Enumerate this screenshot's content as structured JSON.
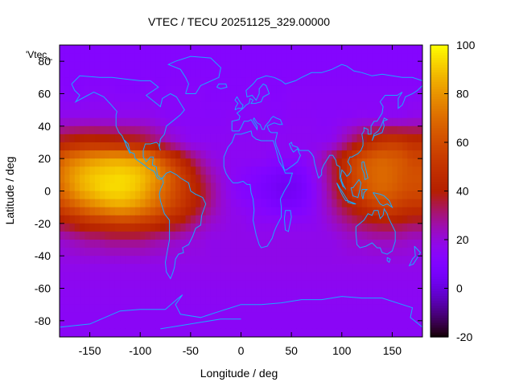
{
  "chart_data": {
    "type": "heatmap",
    "title": "VTEC / TECU 20251125_329.00000",
    "xlabel": "Longitude / deg",
    "ylabel": "Latitude / deg",
    "key_label": "'Vtec_",
    "xlim": [
      -180,
      180
    ],
    "ylim": [
      -90,
      90
    ],
    "x_ticks": [
      -150,
      -100,
      -50,
      0,
      50,
      100,
      150
    ],
    "y_ticks": [
      -80,
      -60,
      -40,
      -20,
      0,
      20,
      40,
      60,
      80
    ],
    "colorbar": {
      "range": [
        -20,
        100
      ],
      "ticks": [
        -20,
        0,
        20,
        40,
        60,
        80,
        100
      ],
      "palette": "gnuplot-pm3d"
    },
    "grid": false,
    "grid_step_deg": 10,
    "field_summary": "Gridded VTEC map: peak ~85-95 TECU over the eastern Pacific near the equator (lon -180 to -20), secondary ~60-70 TECU over the western Pacific / Australia sector (lon 130 to 180), background ~10-20 TECU, minimum ~0-5 TECU over India / Arabian Sea.",
    "values": [
      [
        12,
        12,
        12,
        12,
        12,
        12,
        12,
        12,
        12,
        12,
        12,
        12,
        12,
        12,
        12,
        12,
        12,
        12,
        12,
        12,
        12,
        12,
        12,
        12,
        12,
        12,
        12,
        12,
        12,
        12,
        12,
        12,
        12,
        12,
        12,
        12
      ],
      [
        14,
        13,
        13,
        14,
        14,
        14,
        13,
        13,
        13,
        14,
        13,
        14,
        14,
        14,
        14,
        13,
        13,
        13,
        13,
        14,
        14,
        13,
        13,
        14,
        14,
        14,
        14,
        14,
        14,
        14,
        14,
        14,
        14,
        14,
        14,
        14
      ],
      [
        18,
        18,
        18,
        18,
        18,
        18,
        18,
        18,
        18,
        18,
        16,
        14,
        14,
        14,
        14,
        14,
        14,
        15,
        14,
        14,
        15,
        14,
        14,
        15,
        15,
        15,
        14,
        14,
        15,
        15,
        16,
        15,
        16,
        16,
        16,
        18
      ],
      [
        40,
        43,
        45,
        46,
        45,
        44,
        43,
        42,
        40,
        35,
        30,
        24,
        20,
        16,
        16,
        16,
        16,
        16,
        16,
        16,
        16,
        16,
        16,
        16,
        16,
        16,
        16,
        17,
        24,
        32,
        40,
        48,
        52,
        54,
        52,
        48
      ],
      [
        65,
        72,
        76,
        80,
        82,
        84,
        84,
        82,
        80,
        74,
        64,
        54,
        44,
        34,
        26,
        20,
        18,
        16,
        16,
        16,
        16,
        14,
        14,
        14,
        14,
        18,
        24,
        34,
        44,
        54,
        62,
        66,
        68,
        66,
        64,
        58
      ],
      [
        72,
        80,
        86,
        90,
        92,
        93,
        94,
        93,
        90,
        84,
        76,
        66,
        56,
        46,
        34,
        26,
        20,
        16,
        14,
        12,
        10,
        8,
        6,
        6,
        8,
        14,
        22,
        32,
        44,
        56,
        64,
        68,
        70,
        68,
        64,
        62
      ],
      [
        68,
        76,
        84,
        88,
        92,
        94,
        94,
        92,
        88,
        80,
        72,
        64,
        56,
        48,
        40,
        30,
        22,
        16,
        12,
        10,
        8,
        6,
        4,
        4,
        6,
        12,
        20,
        30,
        42,
        52,
        60,
        66,
        68,
        66,
        62,
        60
      ],
      [
        56,
        62,
        68,
        74,
        78,
        82,
        84,
        82,
        78,
        72,
        66,
        58,
        52,
        44,
        36,
        28,
        22,
        18,
        16,
        14,
        12,
        10,
        8,
        8,
        10,
        14,
        20,
        26,
        34,
        40,
        46,
        52,
        56,
        56,
        52,
        50
      ],
      [
        36,
        40,
        44,
        48,
        50,
        52,
        54,
        54,
        52,
        50,
        46,
        42,
        38,
        32,
        26,
        22,
        20,
        18,
        18,
        16,
        16,
        16,
        16,
        16,
        16,
        16,
        18,
        22,
        26,
        30,
        34,
        36,
        38,
        38,
        36,
        34
      ],
      [
        22,
        24,
        26,
        28,
        28,
        30,
        30,
        30,
        30,
        28,
        26,
        24,
        22,
        20,
        20,
        18,
        18,
        18,
        18,
        18,
        18,
        18,
        18,
        18,
        18,
        18,
        18,
        18,
        20,
        22,
        22,
        24,
        24,
        24,
        24,
        22
      ],
      [
        18,
        18,
        18,
        18,
        18,
        18,
        18,
        18,
        18,
        18,
        18,
        18,
        18,
        18,
        18,
        18,
        18,
        18,
        18,
        18,
        18,
        18,
        18,
        18,
        18,
        18,
        18,
        18,
        18,
        18,
        18,
        18,
        18,
        18,
        18,
        18
      ],
      [
        16,
        16,
        16,
        16,
        16,
        16,
        16,
        16,
        16,
        16,
        16,
        16,
        16,
        16,
        16,
        16,
        16,
        16,
        16,
        16,
        16,
        16,
        16,
        16,
        16,
        16,
        16,
        16,
        16,
        16,
        16,
        16,
        16,
        16,
        16,
        16
      ],
      [
        15,
        15,
        15,
        15,
        15,
        15,
        15,
        15,
        15,
        15,
        15,
        15,
        15,
        15,
        15,
        15,
        15,
        15,
        15,
        15,
        15,
        15,
        15,
        15,
        15,
        15,
        15,
        15,
        15,
        15,
        15,
        15,
        15,
        15,
        15,
        15
      ]
    ],
    "value_rows_lat": [
      80,
      60,
      45,
      30,
      20,
      10,
      0,
      -10,
      -20,
      -30,
      -45,
      -60,
      -80
    ],
    "value_cols_lon_start": -180,
    "value_cols_lon_step": 10
  }
}
